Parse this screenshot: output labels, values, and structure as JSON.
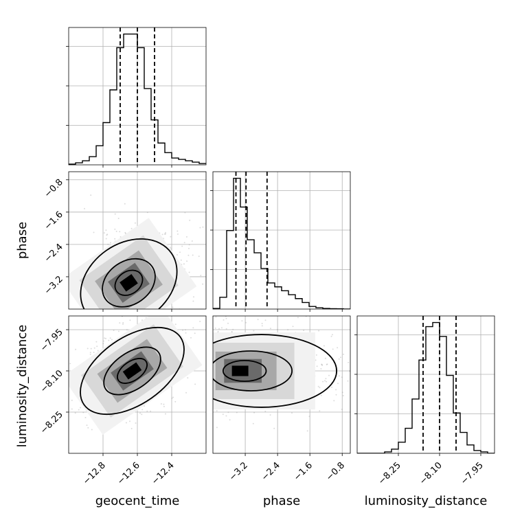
{
  "chart_data": {
    "type": "corner",
    "parameters": [
      "geocent_time",
      "phase",
      "luminosity_distance"
    ],
    "ranges": {
      "geocent_time": [
        -13.0,
        -12.2
      ],
      "phase": [
        -4.0,
        -0.6
      ],
      "luminosity_distance": [
        -8.4,
        -7.9
      ]
    },
    "ticks": {
      "geocent_time": [
        -12.8,
        -12.6,
        -12.4
      ],
      "phase": [
        -3.2,
        -2.4,
        -1.6,
        -0.8
      ],
      "luminosity_distance": [
        -8.25,
        -8.1,
        -7.95
      ]
    },
    "tick_labels": {
      "geocent_time": [
        "−12.8",
        "−12.6",
        "−12.4"
      ],
      "phase": [
        "−3.2",
        "−2.4",
        "−1.6",
        "−0.8"
      ],
      "luminosity_distance": [
        "−8.25",
        "−8.10",
        "−7.95"
      ]
    },
    "quantiles": {
      "geocent_time": [
        -12.7,
        -12.6,
        -12.5
      ],
      "phase": [
        -3.43,
        -3.18,
        -2.66
      ],
      "luminosity_distance": [
        -8.16,
        -8.1,
        -8.04
      ]
    },
    "histograms": {
      "geocent_time": {
        "edges": [
          -13.0,
          -12.96,
          -12.92,
          -12.88,
          -12.84,
          -12.8,
          -12.76,
          -12.72,
          -12.68,
          -12.64,
          -12.6,
          -12.56,
          -12.52,
          -12.48,
          -12.44,
          -12.4,
          -12.36,
          -12.32,
          -12.28,
          -12.24,
          -12.2
        ],
        "counts": [
          0.5,
          1.5,
          3,
          6,
          14,
          31,
          55,
          86,
          96,
          96,
          86,
          56,
          33,
          16,
          9,
          5,
          4,
          3,
          2,
          1
        ]
      },
      "phase": {
        "edges": [
          -4.0,
          -3.83,
          -3.66,
          -3.49,
          -3.32,
          -3.15,
          -2.98,
          -2.81,
          -2.64,
          -2.47,
          -2.3,
          -2.13,
          -1.96,
          -1.79,
          -1.62,
          -1.45,
          -1.28,
          -1.11,
          -0.94,
          -0.77,
          -0.6
        ],
        "counts": [
          0.5,
          9,
          60,
          100,
          78,
          53,
          43,
          31,
          20,
          17,
          14,
          11,
          8,
          5,
          2,
          1,
          0.5,
          0.3,
          0.2,
          0
        ]
      },
      "luminosity_distance": {
        "edges": [
          -8.4,
          -8.375,
          -8.35,
          -8.325,
          -8.3,
          -8.275,
          -8.25,
          -8.225,
          -8.2,
          -8.175,
          -8.15,
          -8.125,
          -8.1,
          -8.075,
          -8.05,
          -8.025,
          -8.0,
          -7.975,
          -7.95,
          -7.925,
          -7.9
        ],
        "counts": [
          0,
          0,
          0,
          0,
          1,
          3,
          8,
          18,
          39,
          67,
          91,
          94,
          84,
          56,
          29,
          15,
          6,
          2,
          1,
          0
        ]
      }
    },
    "peaks": {
      "phase_vs_geocent_time": {
        "x": -12.65,
        "y": -3.35
      },
      "luminosity_distance_vs_geocent_time": {
        "x": -12.63,
        "y": -8.1
      },
      "luminosity_distance_vs_phase": {
        "x": -3.38,
        "y": -8.1
      }
    },
    "grid": true,
    "contour_levels": 3
  }
}
